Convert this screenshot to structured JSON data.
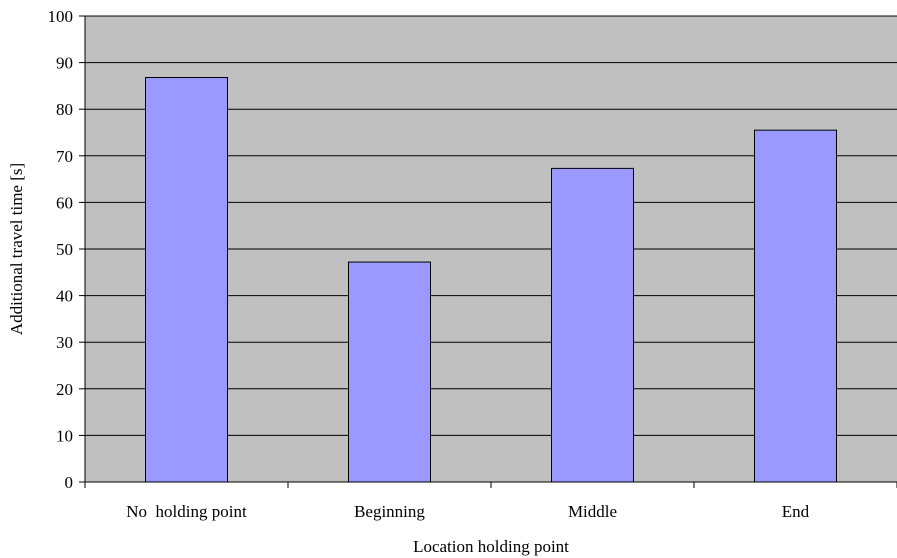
{
  "chart_data": {
    "type": "bar",
    "title": "",
    "xlabel": "Location holding point",
    "ylabel": "Additional travel time [s]",
    "categories": [
      "No  holding point",
      "Beginning",
      "Middle",
      "End"
    ],
    "values": [
      86.8,
      47.2,
      67.3,
      75.5
    ],
    "ylim": [
      0,
      100
    ],
    "yticks": [
      0,
      10,
      20,
      30,
      40,
      50,
      60,
      70,
      80,
      90,
      100
    ],
    "ytick_labels": [
      "0",
      "10",
      "20",
      "30",
      "40",
      "50",
      "60",
      "70",
      "80",
      "90",
      "100"
    ],
    "grid": true,
    "legend": "none",
    "colors": {
      "plot_background": "#c0c0c0",
      "bar_fill": "#9999ff",
      "bar_stroke": "#000000",
      "gridline": "#000000"
    }
  }
}
